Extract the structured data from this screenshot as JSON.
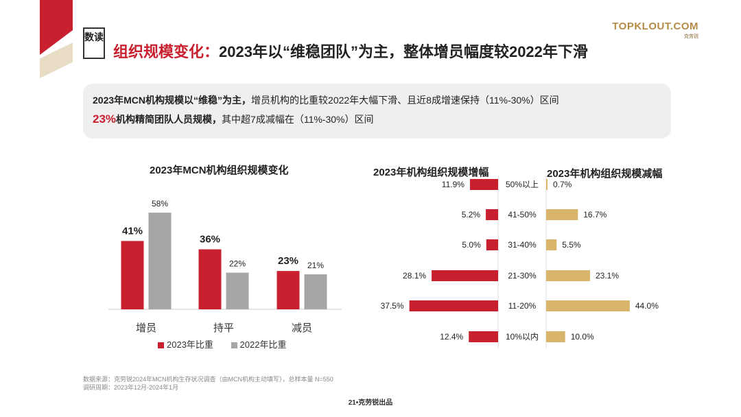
{
  "header": {
    "badge": "数读",
    "title_red": "组织规模变化：",
    "title_black": "2023年以“维稳团队”为主，整体增员幅度较2022年下滑",
    "logo_main": "TOPKLOUT.COM",
    "logo_sub": "克劳锐"
  },
  "summary": {
    "line1_bold": "2023年MCN机构规模以“维稳”为主，",
    "line1_rest": "增员机构的比重较2022年大幅下滑、且近8成增速保持（11%-30%）区间",
    "line2_pct": "23%",
    "line2_bold": "机构精简团队人员规模，",
    "line2_rest": "其中超7成减幅在（11%-30%）区间"
  },
  "colors": {
    "red": "#c8202f",
    "gray": "#a6a6a6",
    "gold": "#d8b56a"
  },
  "chart_data": [
    {
      "type": "bar",
      "title": "2023年MCN机构组织规模变化",
      "categories": [
        "增员",
        "持平",
        "减员"
      ],
      "series": [
        {
          "name": "2023年比重",
          "values": [
            41,
            36,
            23
          ],
          "labels": [
            "41%",
            "36%",
            "23%"
          ]
        },
        {
          "name": "2022年比重",
          "values": [
            58,
            22,
            21
          ],
          "labels": [
            "58%",
            "22%",
            "21%"
          ]
        }
      ],
      "ylim": [
        0,
        65
      ]
    },
    {
      "type": "bar",
      "title": "2023年机构组织规模增幅",
      "categories": [
        "50%以上",
        "41-50%",
        "31-40%",
        "21-30%",
        "11-20%",
        "10%以内"
      ],
      "values": [
        11.9,
        5.2,
        5.0,
        28.1,
        37.5,
        12.4
      ],
      "labels": [
        "11.9%",
        "5.2%",
        "5.0%",
        "28.1%",
        "37.5%",
        "12.4%"
      ]
    },
    {
      "type": "bar",
      "title": "2023年机构组织规模减幅",
      "categories": [
        "50%以上",
        "41-50%",
        "31-40%",
        "21-30%",
        "11-20%",
        "10%以内"
      ],
      "values": [
        0.7,
        16.7,
        5.5,
        23.1,
        44.0,
        10.0
      ],
      "labels": [
        "0.7%",
        "16.7%",
        "5.5%",
        "23.1%",
        "44.0%",
        "10.0%"
      ]
    }
  ],
  "source": {
    "line1": "数据来源：克劳锐2024年MCN机构生存状况调查（由MCN机构主动填写），总样本量 N=550",
    "line2": "调研周期：2023年12月-2024年1月"
  },
  "footer": "21•克劳锐出品"
}
